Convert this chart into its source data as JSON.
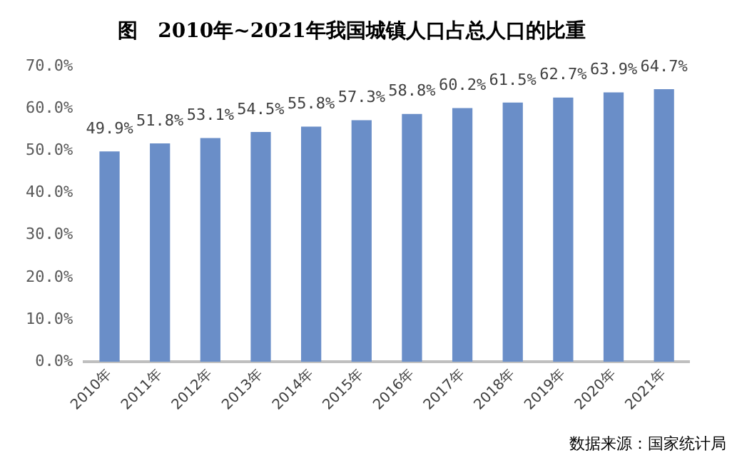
{
  "chart_data": {
    "type": "bar",
    "title": "图　2010年~2021年我国城镇人口占总人口的比重",
    "categories": [
      "2010年",
      "2011年",
      "2012年",
      "2013年",
      "2014年",
      "2015年",
      "2016年",
      "2017年",
      "2018年",
      "2019年",
      "2020年",
      "2021年"
    ],
    "values": [
      49.9,
      51.8,
      53.1,
      54.5,
      55.8,
      57.3,
      58.8,
      60.2,
      61.5,
      62.7,
      63.9,
      64.7
    ],
    "value_labels": [
      "49.9%",
      "51.8%",
      "53.1%",
      "54.5%",
      "55.8%",
      "57.3%",
      "58.8%",
      "60.2%",
      "61.5%",
      "62.7%",
      "63.9%",
      "64.7%"
    ],
    "color": "#6a8ec8",
    "ylim": [
      0,
      70
    ],
    "yticks": [
      {
        "value": 0,
        "label": "0.0%"
      },
      {
        "value": 10,
        "label": "10.0%"
      },
      {
        "value": 20,
        "label": "20.0%"
      },
      {
        "value": 30,
        "label": "30.0%"
      },
      {
        "value": 40,
        "label": "40.0%"
      },
      {
        "value": 50,
        "label": "50.0%"
      },
      {
        "value": 60,
        "label": "60.0%"
      },
      {
        "value": 70,
        "label": "70.0%"
      }
    ],
    "grid": false,
    "legend": false,
    "annotations": [
      "数据来源：国家统计局"
    ]
  }
}
